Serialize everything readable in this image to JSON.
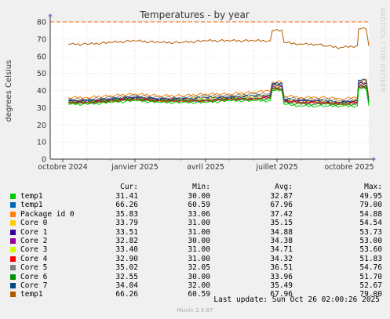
{
  "side_text": "RRDTOOL / TOBI OETIKER",
  "footer": {
    "last_update": "Last update: Sun Oct 26 02:00:26 2025",
    "version": "Munin 2.0.67"
  },
  "legend_headers": [
    "Cur:",
    "Min:",
    "Avg:",
    "Max:"
  ],
  "legend": [
    {
      "label": "temp1",
      "color": "#00cc00",
      "cur": "31.41",
      "min": "30.00",
      "avg": "32.87",
      "max": "49.95"
    },
    {
      "label": "temp1",
      "color": "#0066b3",
      "cur": "66.26",
      "min": "60.59",
      "avg": "67.96",
      "max": "79.00"
    },
    {
      "label": "Package id 0",
      "color": "#ff8000",
      "cur": "35.83",
      "min": "33.06",
      "avg": "37.42",
      "max": "54.88"
    },
    {
      "label": "Core 0",
      "color": "#ffcc00",
      "cur": "33.79",
      "min": "31.00",
      "avg": "35.15",
      "max": "54.54"
    },
    {
      "label": "Core 1",
      "color": "#330099",
      "cur": "33.51",
      "min": "31.00",
      "avg": "34.88",
      "max": "53.73"
    },
    {
      "label": "Core 2",
      "color": "#990099",
      "cur": "32.82",
      "min": "30.00",
      "avg": "34.38",
      "max": "53.00"
    },
    {
      "label": "Core 3",
      "color": "#ccff00",
      "cur": "33.40",
      "min": "31.00",
      "avg": "34.71",
      "max": "53.60"
    },
    {
      "label": "Core 4",
      "color": "#ff0000",
      "cur": "32.90",
      "min": "31.00",
      "avg": "34.32",
      "max": "51.83"
    },
    {
      "label": "Core 5",
      "color": "#808080",
      "cur": "35.02",
      "min": "32.05",
      "avg": "36.51",
      "max": "54.76"
    },
    {
      "label": "Core 6",
      "color": "#008f00",
      "cur": "32.55",
      "min": "30.00",
      "avg": "33.96",
      "max": "51.70"
    },
    {
      "label": "Core 7",
      "color": "#00487d",
      "cur": "34.04",
      "min": "32.00",
      "avg": "35.49",
      "max": "52.67"
    },
    {
      "label": "temp1",
      "color": "#b35a00",
      "cur": "66.26",
      "min": "60.59",
      "avg": "67.96",
      "max": "79.00"
    }
  ],
  "chart_data": {
    "type": "line",
    "title": "Temperatures - by year",
    "ylabel": "degrees Celsius",
    "xlabel": "",
    "ylim": [
      0,
      80
    ],
    "yticks": [
      0,
      10,
      20,
      30,
      40,
      50,
      60,
      70,
      80
    ],
    "x_tick_labels": [
      "octobre 2024",
      "janvier 2025",
      "avril 2025",
      "juillet 2025",
      "octobre 2025"
    ],
    "xlim_months": [
      "2024-09",
      "2025-10"
    ],
    "warning_line": 80,
    "grid": true,
    "series": [
      {
        "name": "temp1",
        "color": "#b35a00",
        "x": [
          "2024-10-08",
          "2024-11-01",
          "2024-12-01",
          "2025-01-01",
          "2025-02-01",
          "2025-03-01",
          "2025-04-01",
          "2025-05-01",
          "2025-06-01",
          "2025-06-20",
          "2025-06-25",
          "2025-07-10",
          "2025-08-01",
          "2025-08-20",
          "2025-09-01",
          "2025-09-20",
          "2025-10-10",
          "2025-10-13",
          "2025-10-26"
        ],
        "values": [
          67,
          67,
          68,
          69,
          68,
          68,
          69,
          69,
          69,
          69,
          75,
          68,
          67,
          67,
          66,
          65,
          66,
          76,
          66
        ]
      },
      {
        "name": "Package id 0",
        "color": "#ff8000",
        "x": [
          "2024-10-08",
          "2024-11-01",
          "2024-12-01",
          "2025-01-01",
          "2025-02-01",
          "2025-03-01",
          "2025-04-01",
          "2025-05-01",
          "2025-06-01",
          "2025-06-20",
          "2025-06-25",
          "2025-07-10",
          "2025-08-01",
          "2025-08-20",
          "2025-09-01",
          "2025-09-20",
          "2025-10-10",
          "2025-10-13",
          "2025-10-26"
        ],
        "values": [
          36,
          36,
          37,
          38,
          37,
          37,
          38,
          38,
          39,
          40,
          45,
          37,
          36,
          36,
          36,
          35,
          36,
          46,
          36
        ]
      },
      {
        "name": "Core 5",
        "color": "#808080",
        "x": [
          "2024-10-08",
          "2024-11-01",
          "2024-12-01",
          "2025-01-01",
          "2025-02-01",
          "2025-03-01",
          "2025-04-01",
          "2025-05-01",
          "2025-06-01",
          "2025-06-20",
          "2025-06-25",
          "2025-07-10",
          "2025-08-01",
          "2025-08-20",
          "2025-09-01",
          "2025-09-20",
          "2025-10-10",
          "2025-10-13",
          "2025-10-26"
        ],
        "values": [
          35,
          35,
          36,
          37,
          36,
          36,
          37,
          37,
          38,
          38,
          44,
          36,
          35,
          35,
          35,
          34,
          35,
          45,
          35
        ]
      },
      {
        "name": "Core 0",
        "color": "#ffcc00",
        "x": [
          "2024-10-08",
          "2024-11-01",
          "2024-12-01",
          "2025-01-01",
          "2025-02-01",
          "2025-03-01",
          "2025-04-01",
          "2025-05-01",
          "2025-06-01",
          "2025-06-20",
          "2025-06-25",
          "2025-07-10",
          "2025-08-01",
          "2025-08-20",
          "2025-09-01",
          "2025-09-20",
          "2025-10-10",
          "2025-10-13",
          "2025-10-26"
        ],
        "values": [
          34,
          34,
          35,
          36,
          35,
          35,
          36,
          36,
          37,
          37,
          43,
          35,
          34,
          34,
          34,
          33,
          34,
          44,
          34
        ]
      },
      {
        "name": "Core 1",
        "color": "#330099",
        "x": [
          "2024-10-08",
          "2024-11-01",
          "2024-12-01",
          "2025-01-01",
          "2025-02-01",
          "2025-03-01",
          "2025-04-01",
          "2025-05-01",
          "2025-06-01",
          "2025-06-20",
          "2025-06-25",
          "2025-07-10",
          "2025-08-01",
          "2025-08-20",
          "2025-09-01",
          "2025-09-20",
          "2025-10-10",
          "2025-10-13",
          "2025-10-26"
        ],
        "values": [
          34,
          34,
          35,
          36,
          35,
          35,
          35,
          36,
          36,
          37,
          43,
          34,
          34,
          34,
          33,
          33,
          34,
          44,
          34
        ]
      },
      {
        "name": "Core 7",
        "color": "#00487d",
        "x": [
          "2024-10-08",
          "2024-11-01",
          "2024-12-01",
          "2025-01-01",
          "2025-02-01",
          "2025-03-01",
          "2025-04-01",
          "2025-05-01",
          "2025-06-01",
          "2025-06-20",
          "2025-06-25",
          "2025-07-10",
          "2025-08-01",
          "2025-08-20",
          "2025-09-01",
          "2025-09-20",
          "2025-10-10",
          "2025-10-13",
          "2025-10-26"
        ],
        "values": [
          34,
          34,
          35,
          36,
          35,
          35,
          36,
          36,
          37,
          37,
          44,
          35,
          34,
          34,
          34,
          33,
          34,
          46,
          34
        ]
      },
      {
        "name": "Core 3",
        "color": "#ccff00",
        "x": [
          "2024-10-08",
          "2024-11-01",
          "2024-12-01",
          "2025-01-01",
          "2025-02-01",
          "2025-03-01",
          "2025-04-01",
          "2025-05-01",
          "2025-06-01",
          "2025-06-20",
          "2025-06-25",
          "2025-07-10",
          "2025-08-01",
          "2025-08-20",
          "2025-09-01",
          "2025-09-20",
          "2025-10-10",
          "2025-10-13",
          "2025-10-26"
        ],
        "values": [
          33,
          33,
          34,
          35,
          34,
          34,
          35,
          35,
          36,
          36,
          42,
          34,
          33,
          33,
          33,
          32,
          33,
          43,
          33
        ]
      },
      {
        "name": "Core 2",
        "color": "#990099",
        "x": [
          "2024-10-08",
          "2024-11-01",
          "2024-12-01",
          "2025-01-01",
          "2025-02-01",
          "2025-03-01",
          "2025-04-01",
          "2025-05-01",
          "2025-06-01",
          "2025-06-20",
          "2025-06-25",
          "2025-07-10",
          "2025-08-01",
          "2025-08-20",
          "2025-09-01",
          "2025-09-20",
          "2025-10-10",
          "2025-10-13",
          "2025-10-26"
        ],
        "values": [
          33,
          33,
          34,
          35,
          34,
          34,
          34,
          35,
          35,
          36,
          42,
          34,
          33,
          33,
          33,
          32,
          33,
          43,
          33
        ]
      },
      {
        "name": "Core 4",
        "color": "#ff0000",
        "x": [
          "2024-10-08",
          "2024-11-01",
          "2024-12-01",
          "2025-01-01",
          "2025-02-01",
          "2025-03-01",
          "2025-04-01",
          "2025-05-01",
          "2025-06-01",
          "2025-06-20",
          "2025-06-25",
          "2025-07-10",
          "2025-08-01",
          "2025-08-20",
          "2025-09-01",
          "2025-09-20",
          "2025-10-10",
          "2025-10-13",
          "2025-10-26"
        ],
        "values": [
          33,
          33,
          34,
          35,
          34,
          34,
          34,
          35,
          35,
          36,
          41,
          34,
          33,
          33,
          33,
          32,
          33,
          42,
          33
        ]
      },
      {
        "name": "Core 6",
        "color": "#008f00",
        "x": [
          "2024-10-08",
          "2024-11-01",
          "2024-12-01",
          "2025-01-01",
          "2025-02-01",
          "2025-03-01",
          "2025-04-01",
          "2025-05-01",
          "2025-06-01",
          "2025-06-20",
          "2025-06-25",
          "2025-07-10",
          "2025-08-01",
          "2025-08-20",
          "2025-09-01",
          "2025-09-20",
          "2025-10-10",
          "2025-10-13",
          "2025-10-26"
        ],
        "values": [
          33,
          33,
          34,
          35,
          34,
          34,
          34,
          35,
          35,
          35,
          41,
          33,
          32,
          32,
          32,
          32,
          32,
          42,
          33
        ]
      },
      {
        "name": "temp1",
        "color": "#00cc00",
        "x": [
          "2024-10-08",
          "2024-11-01",
          "2024-12-01",
          "2025-01-01",
          "2025-02-01",
          "2025-03-01",
          "2025-04-01",
          "2025-05-01",
          "2025-06-01",
          "2025-06-20",
          "2025-06-25",
          "2025-07-10",
          "2025-08-01",
          "2025-08-20",
          "2025-09-01",
          "2025-09-20",
          "2025-10-10",
          "2025-10-13",
          "2025-10-26"
        ],
        "values": [
          32,
          32,
          33,
          34,
          33,
          33,
          33,
          34,
          34,
          34,
          40,
          32,
          31,
          31,
          31,
          31,
          31,
          41,
          31
        ]
      }
    ]
  }
}
